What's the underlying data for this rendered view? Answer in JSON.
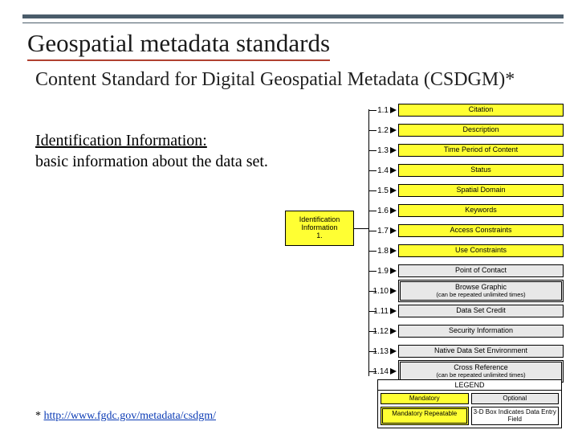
{
  "colors": {
    "mandatory_bg": "#ffff33",
    "optional_bg": "#e8e8e8",
    "rule": "#4a5c6a",
    "title_underline": "#b04030",
    "link": "#0b3bb5",
    "border": "#000000",
    "page_bg": "#ffffff"
  },
  "title": "Geospatial metadata standards",
  "subtitle": "Content Standard for Digital Geospatial Metadata (CSDGM)*",
  "section": {
    "heading": "Identification Information:",
    "body": "basic information about the data set."
  },
  "footnote": {
    "marker": "* ",
    "link_text": "http://www.fgdc.gov/metadata/csdgm/",
    "href": "http://www.fgdc.gov/metadata/csdgm/"
  },
  "root_node": {
    "line1": "Identification",
    "line2": "Information",
    "line3": "1."
  },
  "nodes": [
    {
      "num": "1.1",
      "label": "Citation",
      "kind": "mandatory",
      "repeat": false
    },
    {
      "num": "1.2",
      "label": "Description",
      "kind": "mandatory",
      "repeat": false
    },
    {
      "num": "1.3",
      "label": "Time Period of Content",
      "kind": "mandatory",
      "repeat": false
    },
    {
      "num": "1.4",
      "label": "Status",
      "kind": "mandatory",
      "repeat": false
    },
    {
      "num": "1.5",
      "label": "Spatial Domain",
      "kind": "mandatory",
      "repeat": false
    },
    {
      "num": "1.6",
      "label": "Keywords",
      "kind": "mandatory",
      "repeat": false
    },
    {
      "num": "1.7",
      "label": "Access Constraints",
      "kind": "mandatory",
      "repeat": false
    },
    {
      "num": "1.8",
      "label": "Use Constraints",
      "kind": "mandatory",
      "repeat": false
    },
    {
      "num": "1.9",
      "label": "Point of Contact",
      "kind": "optional",
      "repeat": false
    },
    {
      "num": "1.10",
      "label": "Browse Graphic",
      "sub": "(can be repeated unlimited times)",
      "kind": "optional",
      "repeat": true
    },
    {
      "num": "1.11",
      "label": "Data Set Credit",
      "kind": "optional",
      "repeat": false
    },
    {
      "num": "1.12",
      "label": "Security Information",
      "kind": "optional",
      "repeat": false
    },
    {
      "num": "1.13",
      "label": "Native Data Set Environment",
      "kind": "optional",
      "repeat": false
    },
    {
      "num": "1.14",
      "label": "Cross Reference",
      "sub": "(can be repeated unlimited times)",
      "kind": "optional",
      "repeat": true
    }
  ],
  "legend": {
    "title": "LEGEND",
    "items": [
      {
        "label": "Mandatory",
        "class": "mand"
      },
      {
        "label": "Optional",
        "class": "opt"
      },
      {
        "label": "Mandatory Repeatable",
        "class": "rep"
      },
      {
        "label": "3-D Box Indicates Data Entry Field",
        "class": "threed"
      }
    ]
  }
}
